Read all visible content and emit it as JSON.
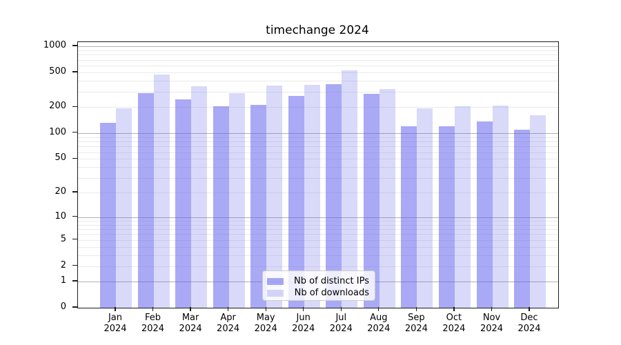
{
  "title": "timechange 2024",
  "chart_data": {
    "type": "bar",
    "title": "timechange 2024",
    "categories": [
      "Jan 2024",
      "Feb 2024",
      "Mar 2024",
      "Apr 2024",
      "May 2024",
      "Jun 2024",
      "Jul 2024",
      "Aug 2024",
      "Sep 2024",
      "Oct 2024",
      "Nov 2024",
      "Dec 2024"
    ],
    "x_tick_top_lines": [
      "Jan",
      "Feb",
      "Mar",
      "Apr",
      "May",
      "Jun",
      "Jul",
      "Aug",
      "Sep",
      "Oct",
      "Nov",
      "Dec"
    ],
    "x_tick_bottom_line": "2024",
    "series": [
      {
        "name": "Nb of distinct IPs",
        "color_hex": "#a9a9f1",
        "color_rgba": "rgba(90,90,235,0.52)",
        "values": [
          132,
          288,
          244,
          205,
          211,
          267,
          369,
          283,
          119,
          120,
          136,
          110
        ]
      },
      {
        "name": "Nb of downloads",
        "color_hex": "#d9d9f7",
        "color_rgba": "rgba(90,90,235,0.23)",
        "values": [
          194,
          470,
          345,
          288,
          352,
          362,
          528,
          325,
          193,
          206,
          209,
          161
        ]
      }
    ],
    "xlabel": "",
    "ylabel": "",
    "yscale": "symlog ln(1+x)",
    "ylim": [
      0,
      1100
    ],
    "y_ticks": [
      0,
      1,
      2,
      5,
      10,
      20,
      50,
      100,
      200,
      500,
      1000
    ],
    "y_major_gridlines": [
      1,
      10,
      100,
      1000
    ],
    "y_minor_gridlines": [
      2,
      3,
      4,
      5,
      6,
      7,
      8,
      9,
      20,
      30,
      40,
      50,
      60,
      70,
      80,
      90,
      200,
      300,
      400,
      500,
      600,
      700,
      800,
      900
    ],
    "grid": true,
    "legend_position": "lower center"
  },
  "legend": {
    "items": [
      {
        "label": "Nb of distinct IPs"
      },
      {
        "label": "Nb of downloads"
      }
    ]
  },
  "colors": {
    "background": "#ffffff",
    "spine": "#1a1a1a",
    "major_grid": "#b2b2b2",
    "minor_grid": "#eaeaea",
    "bar_dark_hex": "#a9a9f1",
    "bar_light_hex": "#d9d9f7",
    "text": "#000000"
  }
}
